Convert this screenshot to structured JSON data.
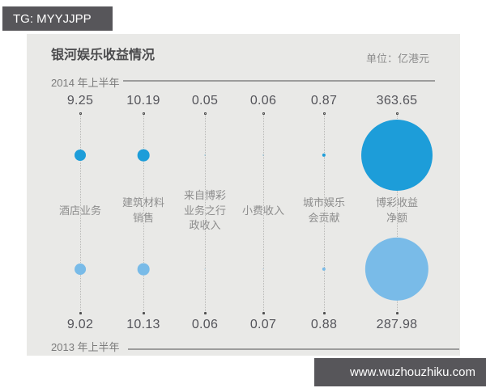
{
  "badges": {
    "top_left": "TG: MYYJJPP",
    "bottom_right": "www.wuzhouzhiku.com"
  },
  "chart": {
    "title": "银河娱乐收益情况",
    "unit_label": "单位：亿港元",
    "period_top": "2014 年上半年",
    "period_bottom": "2013 年上半年"
  },
  "labels_display": [
    "酒店业务",
    "建筑材料\n销售",
    "来自博彩\n业务之行\n政收入",
    "小费收入",
    "城市娱乐\n会贡献",
    "博彩收益\n净额"
  ],
  "chart_data": {
    "type": "scatter",
    "subtype": "bubble-comparison",
    "title": "银河娱乐收益情况",
    "unit": "亿港元",
    "categories": [
      "酒店业务",
      "建筑材料销售",
      "来自博彩业务之行政收入",
      "小费收入",
      "城市娱乐会贡献",
      "博彩收益净额"
    ],
    "series": [
      {
        "name": "2014 年上半年",
        "color": "#1d9dd9",
        "values": [
          9.25,
          10.19,
          0.05,
          0.06,
          0.87,
          363.65
        ]
      },
      {
        "name": "2013 年上半年",
        "color": "#79bbe8",
        "values": [
          9.02,
          10.13,
          0.06,
          0.07,
          0.88,
          287.98
        ]
      }
    ],
    "bubble_area_proportional_to_value": true,
    "legend_position": "rows-labeled-left",
    "grid": false
  }
}
